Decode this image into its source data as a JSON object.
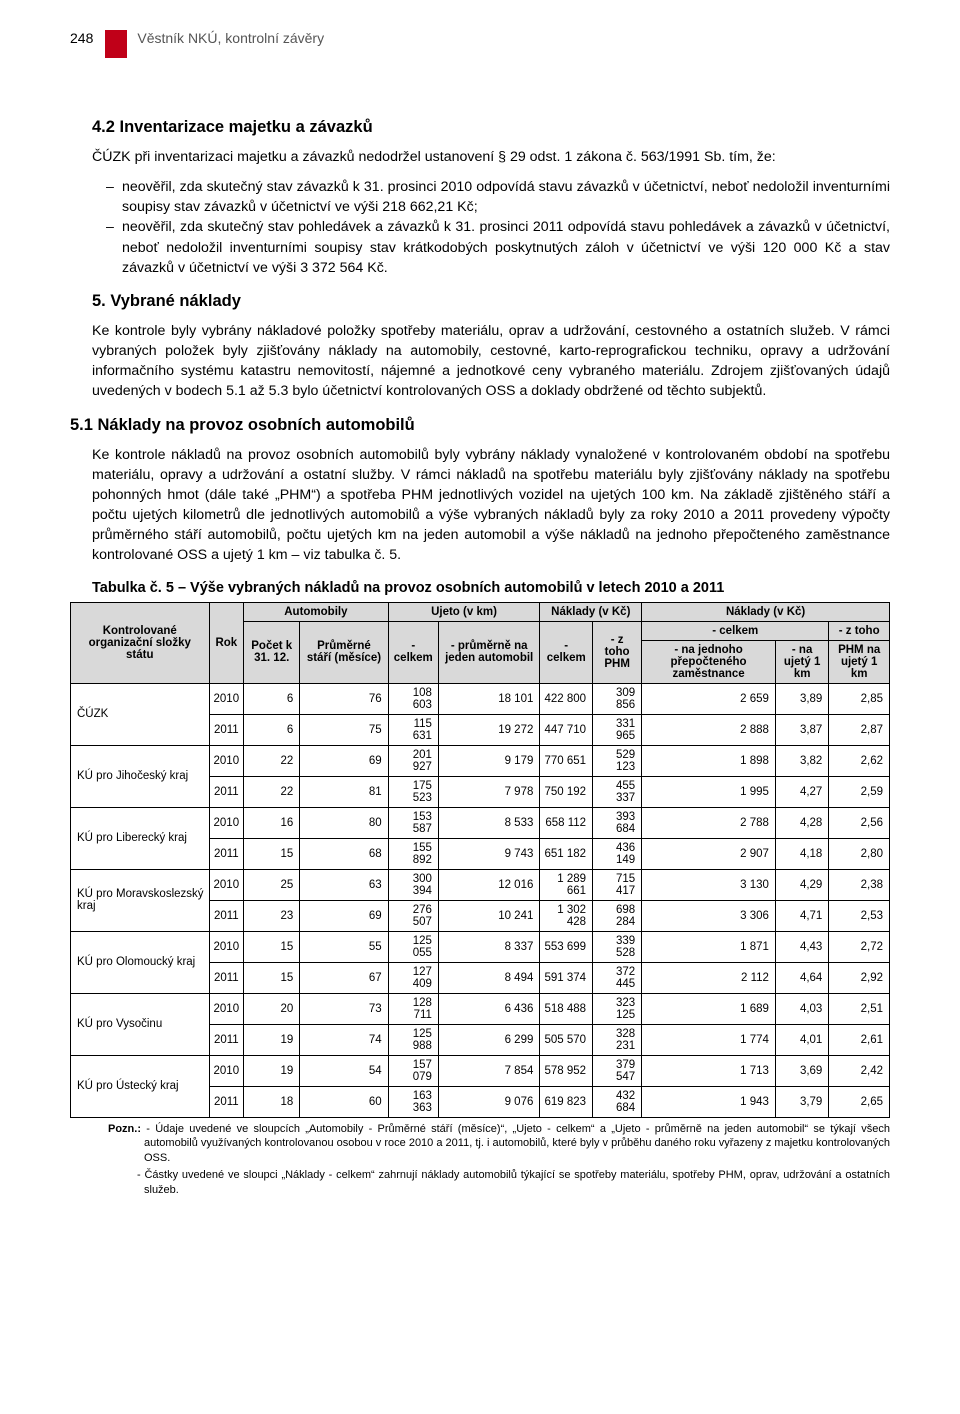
{
  "header": {
    "page_number": "248",
    "title": "Věstník NKÚ, kontrolní závěry"
  },
  "section42": {
    "heading": "4.2 Inventarizace majetku a závazků",
    "intro": "ČÚZK při inventarizaci majetku a závazků nedodržel ustanovení § 29 odst. 1 zákona č. 563/1991 Sb. tím, že:",
    "bullet1": "neověřil, zda skutečný stav závazků k 31. prosinci 2010 odpovídá stavu závazků v účetnictví, neboť nedoložil inventurními soupisy stav závazků v účetnictví ve výši 218 662,21 Kč;",
    "bullet2": "neověřil, zda skutečný stav pohledávek a závazků k 31. prosinci 2011 odpovídá stavu pohledávek a závazků v účetnictví, neboť nedoložil inventurními soupisy stav krátkodobých poskytnutých záloh v účetnictví ve výši 120 000 Kč a stav závazků v účetnictví ve výši 3 372 564 Kč."
  },
  "section5": {
    "heading": "5. Vybrané náklady",
    "para": "Ke kontrole byly vybrány nákladové položky spotřeby materiálu, oprav a udržování, cestovného a ostatních služeb. V rámci vybraných položek byly zjišťovány náklady na automobily, cestovné, karto-reprografickou techniku, opravy a udržování informačního systému katastru nemovitostí, nájemné a jednotkové ceny vybraného materiálu. Zdrojem zjišťovaných údajů uvedených v bodech 5.1 až 5.3 bylo účetnictví kontrolovaných OSS a doklady obdržené od těchto subjektů."
  },
  "section51": {
    "heading": "5.1 Náklady na provoz osobních automobilů",
    "para": "Ke kontrole nákladů na provoz osobních automobilů byly vybrány náklady vynaložené v kontrolovaném období na spotřebu materiálu, opravy a udržování a ostatní služby. V rámci nákladů na spotřebu materiálu byly zjišťovány náklady na spotřebu pohonných hmot (dále také „PHM“) a spotřeba PHM jednotlivých vozidel na ujetých 100 km. Na základě zjištěného stáří a počtu ujetých kilometrů dle jednotlivých automobilů a výše vybraných nákladů byly za roky 2010 a 2011 provedeny výpočty průměrného stáří automobilů, počtu ujetých km na jeden automobil a výše nákladů na jednoho přepočteného zaměstnance kontrolované OSS a ujetý 1 km – viz tabulka č. 5."
  },
  "table": {
    "caption": "Tabulka č. 5 – Výše vybraných nákladů na provoz osobních automobilů v letech 2010 a 2011",
    "headers": {
      "org": "Kontrolované organizační složky státu",
      "rok": "Rok",
      "auto_group": "Automobily",
      "pocet": "Počet k 31. 12.",
      "stari": "Průměrné stáří (měsíce)",
      "ujeto_group": "Ujeto (v km)",
      "ujeto_celkem": "- celkem",
      "ujeto_prum": "- průměrně na jeden automobil",
      "naklady_group": "Náklady (v Kč)",
      "naklady_celkem": "- celkem",
      "naklady_phm": "- z toho PHM",
      "naklady2_group": "Náklady (v Kč)",
      "n2_celkem": "- celkem",
      "n2_prepoct": "- na jednoho přepočteného zaměstnance",
      "n2_1km": "- na ujetý 1 km",
      "n2_ztoho": "- z toho",
      "n2_phm1km": "PHM na ujetý 1 km"
    },
    "rows": [
      {
        "org": "ČÚZK",
        "rok": "2010",
        "pocet": "6",
        "stari": "76",
        "ucelk": "108 603",
        "uprum": "18 101",
        "ncelk": "422 800",
        "nphm": "309 856",
        "n2c": "2 659",
        "n2k": "3,89",
        "n2p": "2,85"
      },
      {
        "org": "",
        "rok": "2011",
        "pocet": "6",
        "stari": "75",
        "ucelk": "115 631",
        "uprum": "19 272",
        "ncelk": "447 710",
        "nphm": "331 965",
        "n2c": "2 888",
        "n2k": "3,87",
        "n2p": "2,87"
      },
      {
        "org": "KÚ pro Jihočeský kraj",
        "rok": "2010",
        "pocet": "22",
        "stari": "69",
        "ucelk": "201 927",
        "uprum": "9 179",
        "ncelk": "770 651",
        "nphm": "529 123",
        "n2c": "1 898",
        "n2k": "3,82",
        "n2p": "2,62"
      },
      {
        "org": "",
        "rok": "2011",
        "pocet": "22",
        "stari": "81",
        "ucelk": "175 523",
        "uprum": "7 978",
        "ncelk": "750 192",
        "nphm": "455 337",
        "n2c": "1 995",
        "n2k": "4,27",
        "n2p": "2,59"
      },
      {
        "org": "KÚ pro Liberecký kraj",
        "rok": "2010",
        "pocet": "16",
        "stari": "80",
        "ucelk": "153 587",
        "uprum": "8 533",
        "ncelk": "658 112",
        "nphm": "393 684",
        "n2c": "2 788",
        "n2k": "4,28",
        "n2p": "2,56"
      },
      {
        "org": "",
        "rok": "2011",
        "pocet": "15",
        "stari": "68",
        "ucelk": "155 892",
        "uprum": "9 743",
        "ncelk": "651 182",
        "nphm": "436 149",
        "n2c": "2 907",
        "n2k": "4,18",
        "n2p": "2,80"
      },
      {
        "org": "KÚ pro Moravskoslezský kraj",
        "rok": "2010",
        "pocet": "25",
        "stari": "63",
        "ucelk": "300 394",
        "uprum": "12 016",
        "ncelk": "1 289 661",
        "nphm": "715 417",
        "n2c": "3 130",
        "n2k": "4,29",
        "n2p": "2,38"
      },
      {
        "org": "",
        "rok": "2011",
        "pocet": "23",
        "stari": "69",
        "ucelk": "276 507",
        "uprum": "10 241",
        "ncelk": "1 302 428",
        "nphm": "698 284",
        "n2c": "3 306",
        "n2k": "4,71",
        "n2p": "2,53"
      },
      {
        "org": "KÚ pro Olomoucký kraj",
        "rok": "2010",
        "pocet": "15",
        "stari": "55",
        "ucelk": "125 055",
        "uprum": "8 337",
        "ncelk": "553 699",
        "nphm": "339 528",
        "n2c": "1 871",
        "n2k": "4,43",
        "n2p": "2,72"
      },
      {
        "org": "",
        "rok": "2011",
        "pocet": "15",
        "stari": "67",
        "ucelk": "127 409",
        "uprum": "8 494",
        "ncelk": "591 374",
        "nphm": "372 445",
        "n2c": "2 112",
        "n2k": "4,64",
        "n2p": "2,92"
      },
      {
        "org": "KÚ pro Vysočinu",
        "rok": "2010",
        "pocet": "20",
        "stari": "73",
        "ucelk": "128 711",
        "uprum": "6 436",
        "ncelk": "518 488",
        "nphm": "323 125",
        "n2c": "1 689",
        "n2k": "4,03",
        "n2p": "2,51"
      },
      {
        "org": "",
        "rok": "2011",
        "pocet": "19",
        "stari": "74",
        "ucelk": "125 988",
        "uprum": "6 299",
        "ncelk": "505 570",
        "nphm": "328 231",
        "n2c": "1 774",
        "n2k": "4,01",
        "n2p": "2,61"
      },
      {
        "org": "KÚ pro Ústecký kraj",
        "rok": "2010",
        "pocet": "19",
        "stari": "54",
        "ucelk": "157 079",
        "uprum": "7 854",
        "ncelk": "578 952",
        "nphm": "379 547",
        "n2c": "1 713",
        "n2k": "3,69",
        "n2p": "2,42"
      },
      {
        "org": "",
        "rok": "2011",
        "pocet": "18",
        "stari": "60",
        "ucelk": "163 363",
        "uprum": "9 076",
        "ncelk": "619 823",
        "nphm": "432 684",
        "n2c": "1 943",
        "n2k": "3,79",
        "n2p": "2,65"
      }
    ]
  },
  "footnotes": {
    "label": "Pozn.:",
    "note1": "- Údaje uvedené ve sloupcích „Automobily - Průměrné stáří (měsíce)“, „Ujeto - celkem“ a „Ujeto - průměrně na jeden automobil“ se týkají všech automobilů využívaných kontrolovanou osobou v roce 2010 a 2011, tj. i automobilů, které byly v průběhu daného roku vyřazeny z majetku kontrolovaných OSS.",
    "note2": "- Částky uvedené ve sloupci „Náklady - celkem“ zahrnují náklady automobilů týkající se spotřeby materiálu, spotřeby PHM, oprav, udržování a ostatních služeb."
  }
}
